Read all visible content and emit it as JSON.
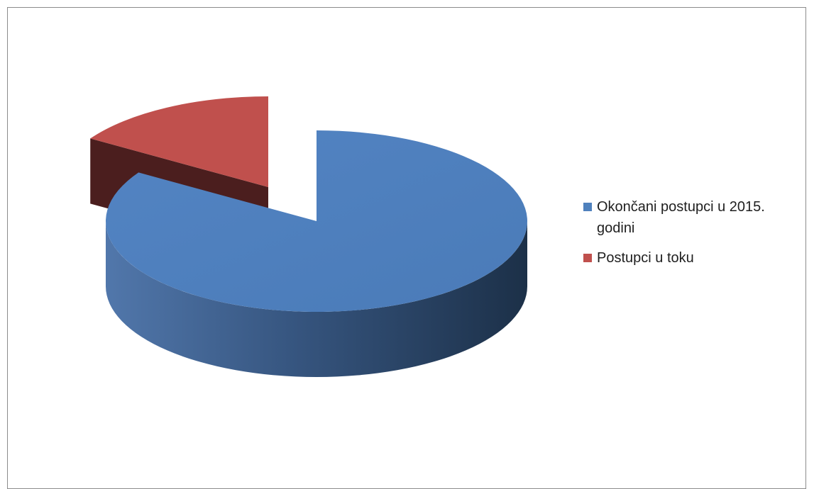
{
  "chart_data": {
    "type": "pie",
    "style": "3d-exploded",
    "title": "",
    "categories": [
      "Okončani postupci u 2015. godini",
      "Postupci u toku"
    ],
    "values": [
      84,
      16
    ],
    "unit": "percent",
    "colors": [
      "#4f81bd",
      "#c0504d"
    ],
    "legend_placement": "right"
  }
}
